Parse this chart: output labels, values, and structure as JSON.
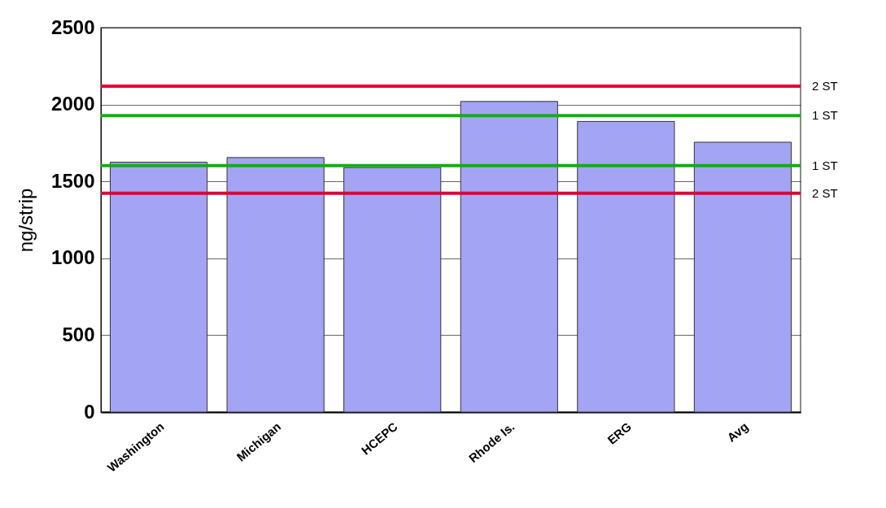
{
  "chart_data": {
    "type": "bar",
    "ylabel": "ng/strip",
    "categories": [
      "Washington",
      "Michigan",
      "HCEPC",
      "Rhode Is.",
      "ERG",
      "Avg"
    ],
    "values": [
      1625,
      1655,
      1590,
      2020,
      1890,
      1755
    ],
    "color": "#a4a4f4",
    "ylim": [
      0,
      2500
    ],
    "yticks": [
      0,
      500,
      1000,
      1500,
      2000,
      2500
    ],
    "grid": "y",
    "ref_lines": [
      {
        "axis": "y",
        "value": 2120,
        "label": "2 ST",
        "color": "#e0003a"
      },
      {
        "axis": "y",
        "value": 1928,
        "label": "1 ST",
        "color": "#10b010"
      },
      {
        "axis": "y",
        "value": 1603,
        "label": "1 ST",
        "color": "#10b010"
      },
      {
        "axis": "y",
        "value": 1423,
        "label": "2 ST",
        "color": "#e0003a"
      }
    ]
  }
}
